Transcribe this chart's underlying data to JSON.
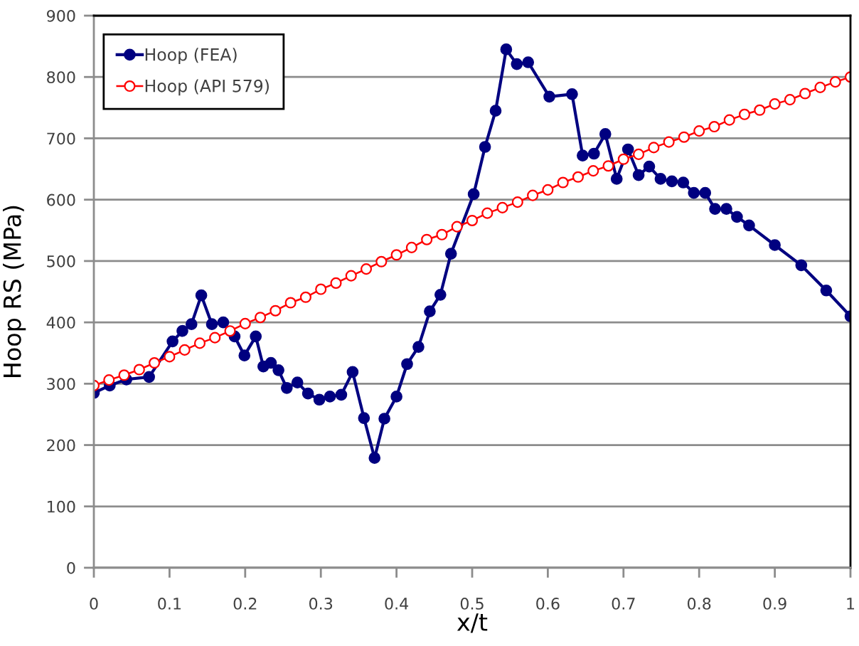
{
  "chart_data": {
    "type": "line",
    "xlabel": "x/t",
    "ylabel": "Hoop RS (MPa)",
    "xlim": [
      0,
      1
    ],
    "xticks": [
      0,
      0.1,
      0.2,
      0.3,
      0.4,
      0.5,
      0.6,
      0.7,
      0.8,
      0.9,
      1
    ],
    "ylim": [
      0,
      900
    ],
    "yticks": [
      0,
      100,
      200,
      300,
      400,
      500,
      600,
      700,
      800,
      900
    ],
    "grid": "y",
    "legend": "top left",
    "marker": "circle",
    "line_style": "solid",
    "series": [
      {
        "name": "Hoop (FEA)",
        "color": "#000080",
        "x": [
          0,
          0.021,
          0.043,
          0.073,
          0.104,
          0.117,
          0.129,
          0.142,
          0.156,
          0.171,
          0.186,
          0.199,
          0.214,
          0.224,
          0.234,
          0.244,
          0.255,
          0.269,
          0.283,
          0.298,
          0.312,
          0.327,
          0.342,
          0.357,
          0.371,
          0.384,
          0.4,
          0.414,
          0.429,
          0.444,
          0.458,
          0.472,
          0.502,
          0.517,
          0.531,
          0.545,
          0.559,
          0.574,
          0.602,
          0.632,
          0.646,
          0.661,
          0.676,
          0.691,
          0.706,
          0.72,
          0.734,
          0.749,
          0.764,
          0.779,
          0.793,
          0.808,
          0.821,
          0.836,
          0.85,
          0.866,
          0.9,
          0.935,
          0.968,
          1
        ],
        "values": [
          285,
          297,
          307,
          311,
          369,
          386,
          397,
          444,
          397,
          400,
          377,
          346,
          377,
          328,
          334,
          322,
          293,
          302,
          284,
          274,
          279,
          282,
          319,
          244,
          179,
          243,
          279,
          332,
          360,
          418,
          445,
          512,
          609,
          686,
          745,
          845,
          821,
          824,
          768,
          772,
          672,
          675,
          707,
          634,
          682,
          640,
          654,
          634,
          630,
          628,
          611,
          611,
          585,
          585,
          572,
          558,
          526,
          493,
          452,
          410
        ]
      },
      {
        "name": "Hoop (API 579)",
        "color": "#ff0000",
        "x": [
          0,
          0.02,
          0.04,
          0.06,
          0.08,
          0.1,
          0.12,
          0.14,
          0.16,
          0.18,
          0.2,
          0.22,
          0.24,
          0.26,
          0.28,
          0.3,
          0.32,
          0.34,
          0.36,
          0.38,
          0.4,
          0.42,
          0.44,
          0.46,
          0.48,
          0.5,
          0.52,
          0.54,
          0.56,
          0.58,
          0.6,
          0.62,
          0.64,
          0.66,
          0.68,
          0.7,
          0.72,
          0.74,
          0.76,
          0.78,
          0.8,
          0.82,
          0.84,
          0.86,
          0.88,
          0.9,
          0.92,
          0.94,
          0.96,
          0.98,
          1
        ],
        "values": [
          297,
          306,
          314,
          323,
          334,
          344,
          355,
          366,
          375,
          386,
          398,
          408,
          419,
          432,
          441,
          454,
          464,
          476,
          487,
          499,
          510,
          522,
          535,
          543,
          556,
          566,
          578,
          587,
          596,
          607,
          616,
          628,
          637,
          647,
          655,
          666,
          674,
          685,
          694,
          702,
          712,
          719,
          730,
          739,
          746,
          756,
          763,
          773,
          783,
          792,
          800
        ]
      }
    ]
  }
}
